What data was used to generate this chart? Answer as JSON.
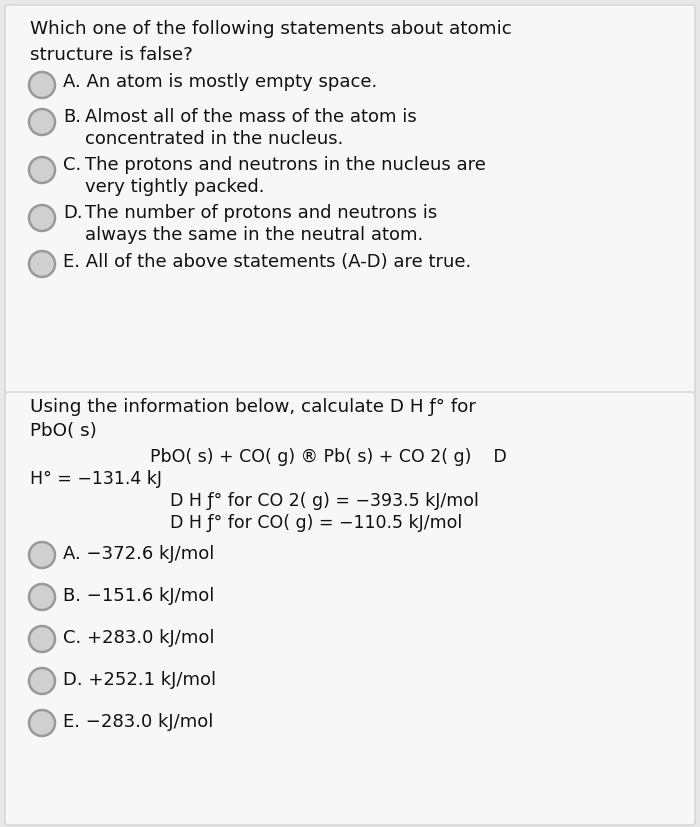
{
  "bg_color": "#e8e8e8",
  "panel1_bg": "#f7f7f7",
  "panel2_bg": "#f7f7f7",
  "text_color": "#111111",
  "circle_edge_color": "#999999",
  "circle_fill_color": "#d0d0d0",
  "font_size_title": 13.2,
  "font_size_option": 13.0,
  "font_size_eq": 12.5,
  "q1_title_line1": "Which one of the following statements about atomic",
  "q1_title_line2": "structure is false?",
  "q1_options": [
    [
      "A.",
      "An atom is mostly empty space.",
      false
    ],
    [
      "B.",
      "Almost all of the mass of the atom is\nconcentrated in the nucleus.",
      true
    ],
    [
      "C.",
      "The protons and neutrons in the nucleus are\nvery tightly packed.",
      true
    ],
    [
      "D.",
      "The number of protons and neutrons is\nalways the same in the neutral atom.",
      true
    ],
    [
      "E.",
      "All of the above statements (A-D) are true.",
      false
    ]
  ],
  "q2_title_line1": "Using the information below, calculate D H ƒ° for",
  "q2_title_line2": "PbO( s)",
  "q2_eq1": "PbO( s) + CO( g) ® Pb( s) + CO 2( g)    D",
  "q2_eq2": "H° = −131.4 kJ",
  "q2_eq3": "D H ƒ° for CO 2( g) = −393.5 kJ/mol",
  "q2_eq4": "D H ƒ° for CO( g) = −110.5 kJ/mol",
  "q2_options": [
    "A. −372.6 kJ/mol",
    "B. −151.6 kJ/mol",
    "C. +283.0 kJ/mol",
    "D. +252.1 kJ/mol",
    "E. −283.0 kJ/mol"
  ]
}
